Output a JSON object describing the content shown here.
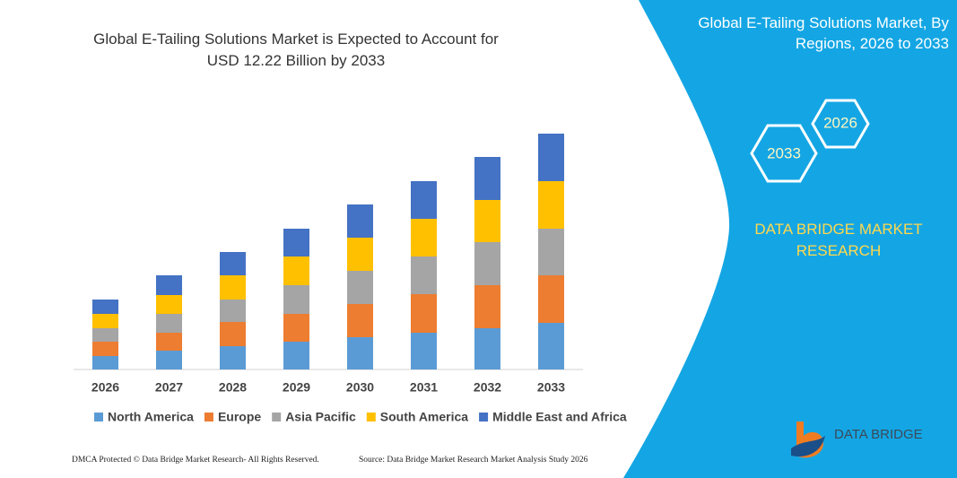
{
  "chart_data": {
    "type": "bar",
    "stacked": true,
    "title": "Global E-Tailing Solutions Market is Expected to Account for USD 12.22 Billion by 2033",
    "categories": [
      "2026",
      "2027",
      "2028",
      "2029",
      "2030",
      "2031",
      "2032",
      "2033"
    ],
    "ylim": [
      0,
      270
    ],
    "series": [
      {
        "name": "North America",
        "color": "#5b9bd5",
        "values": [
          15,
          21,
          26,
          31,
          36,
          41,
          46,
          52
        ]
      },
      {
        "name": "Europe",
        "color": "#ed7d31",
        "values": [
          16,
          20,
          27,
          31,
          37,
          43,
          48,
          53
        ]
      },
      {
        "name": "Asia Pacific",
        "color": "#a5a5a5",
        "values": [
          15,
          21,
          25,
          32,
          37,
          42,
          48,
          52
        ]
      },
      {
        "name": "South America",
        "color": "#ffc000",
        "values": [
          16,
          21,
          27,
          32,
          37,
          42,
          47,
          53
        ]
      },
      {
        "name": "Middle East and Africa",
        "color": "#4472c4",
        "values": [
          16,
          22,
          26,
          31,
          37,
          42,
          48,
          53
        ]
      }
    ],
    "legend": "bottom",
    "grid": false
  },
  "side_panel": {
    "title": "Global E-Tailing Solutions Market, By Regions, 2026 to 2033",
    "hexagons": [
      "2026",
      "2033"
    ],
    "brand": "DATA BRIDGE MARKET RESEARCH"
  },
  "logo": {
    "text": "DATA BRIDGE"
  },
  "footer": {
    "left": "DMCA Protected © Data Bridge Market Research-  All Rights Reserved.",
    "right": "Source: Data Bridge Market Research  Market Analysis Study 2026"
  }
}
